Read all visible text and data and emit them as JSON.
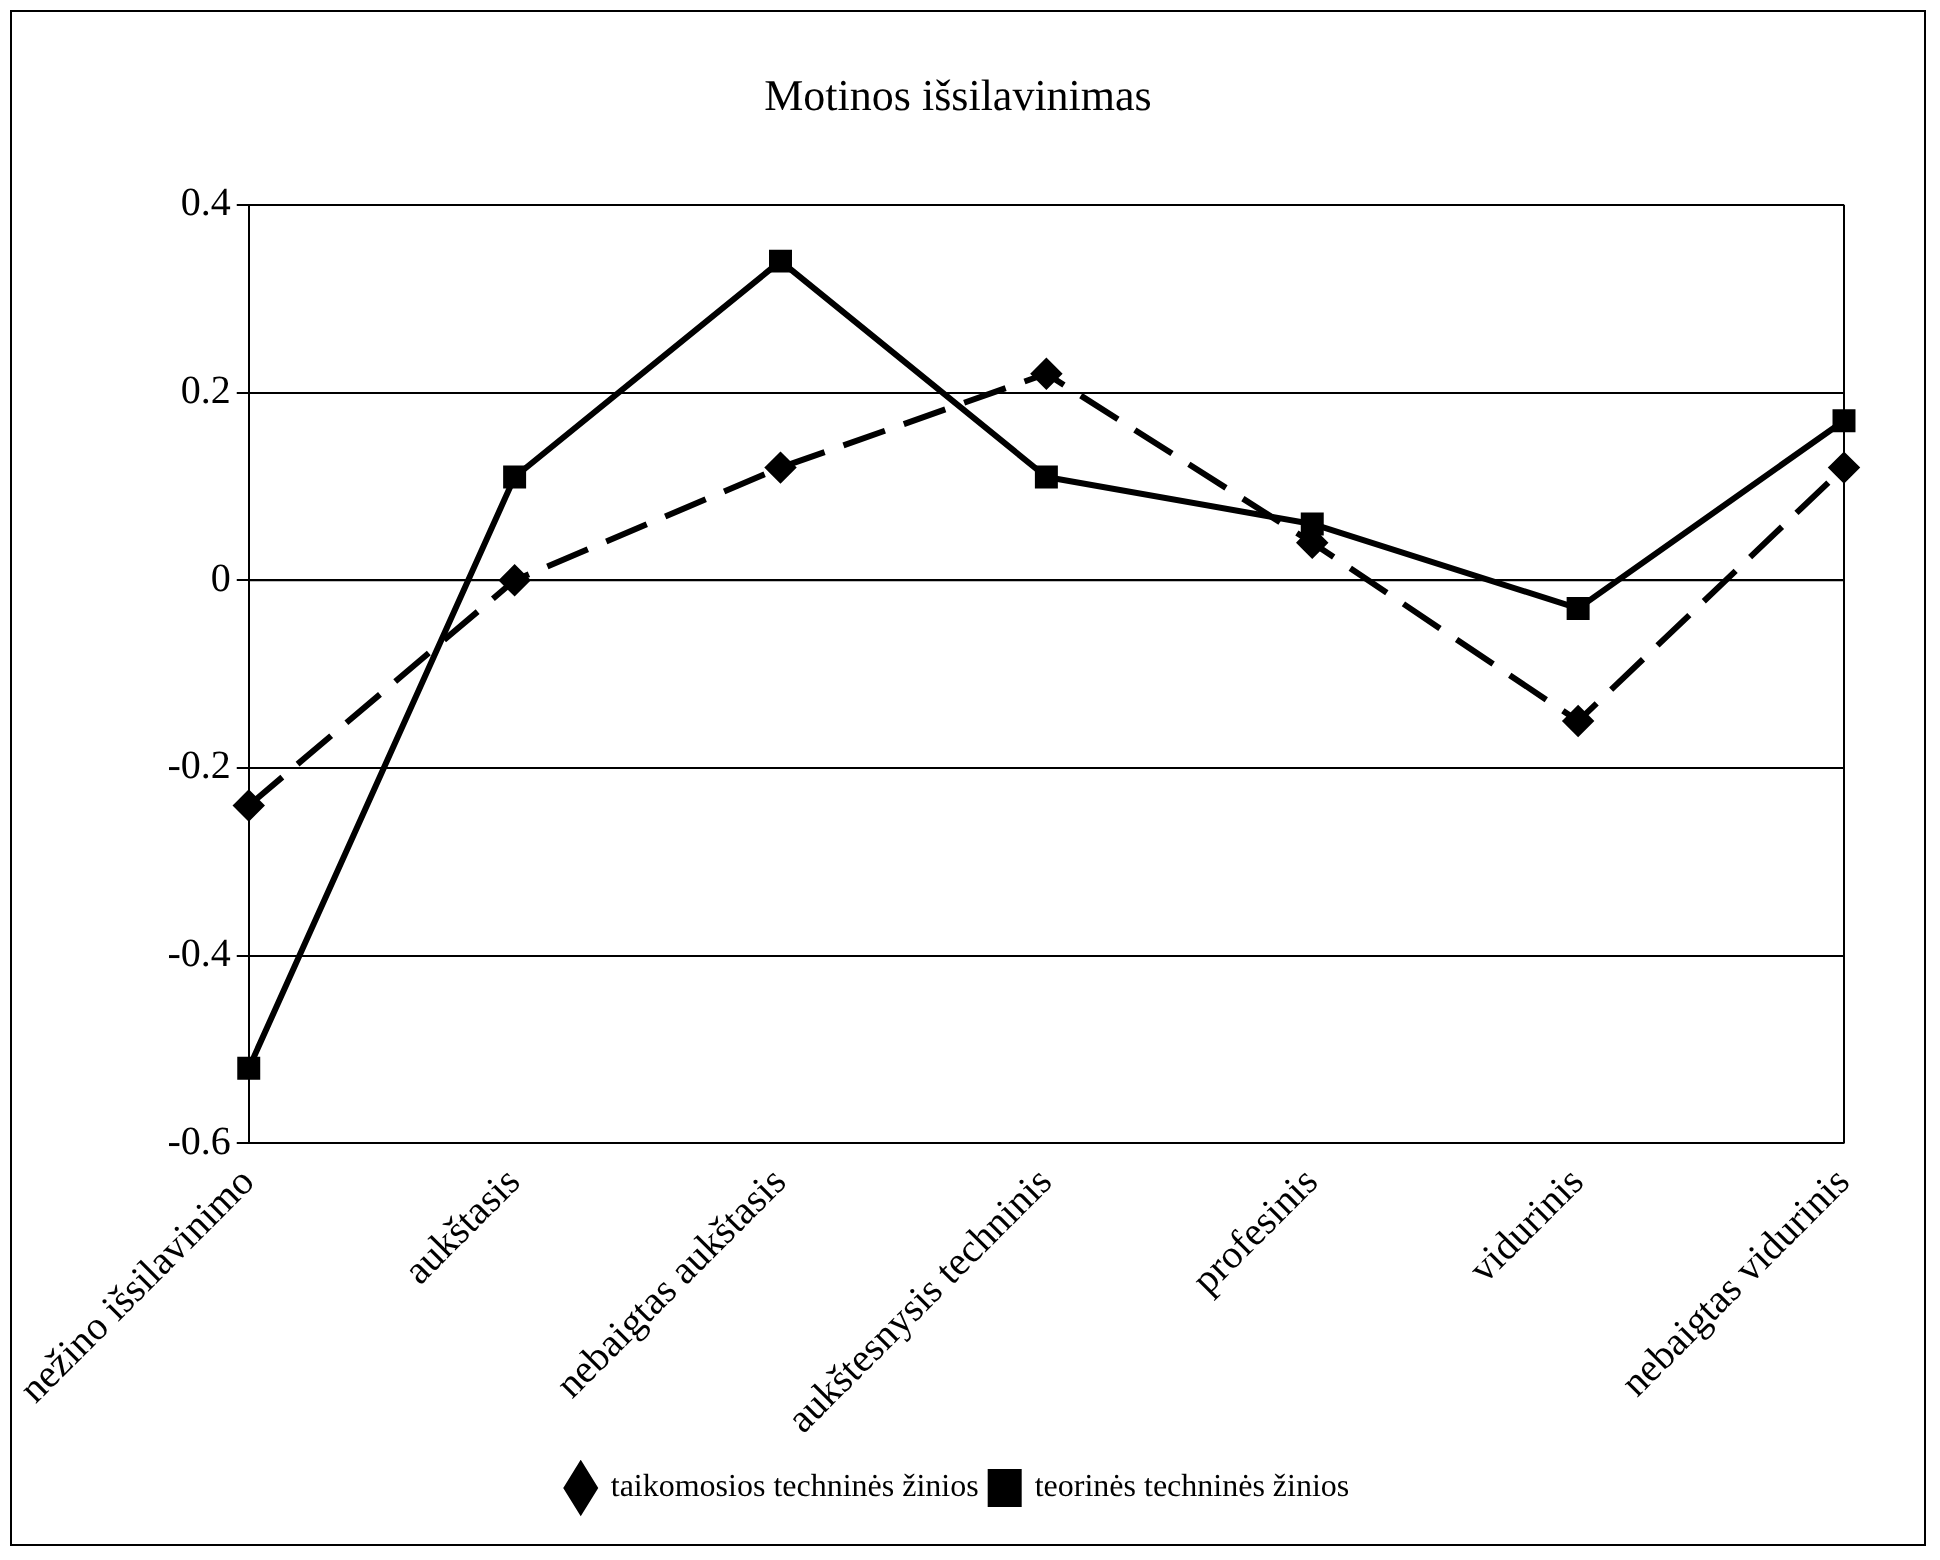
{
  "chart_data": {
    "type": "line",
    "title": "Motinos išsilavinimas",
    "categories": [
      "nežino išsilavinimo",
      "aukštasis",
      "nebaigtas aukštasis",
      "aukštesnysis techninis",
      "profesinis",
      "vidurinis",
      "nebaigtas vidurinis"
    ],
    "series": [
      {
        "name": "taikomosios techninės žinios",
        "color": "#000000",
        "marker": "diamond",
        "line_style": "dashed",
        "values": [
          -0.24,
          0.0,
          0.12,
          0.22,
          0.04,
          -0.15,
          0.12
        ]
      },
      {
        "name": "teorinės techninės žinios",
        "color": "#000000",
        "marker": "square",
        "line_style": "solid",
        "values": [
          -0.52,
          0.11,
          0.34,
          0.11,
          0.06,
          -0.03,
          0.17
        ]
      }
    ],
    "ylim": [
      -0.6,
      0.4
    ],
    "yticks": [
      -0.6,
      -0.4,
      -0.2,
      0,
      0.2,
      0.4
    ],
    "grid": "y",
    "legend": "bottom"
  }
}
